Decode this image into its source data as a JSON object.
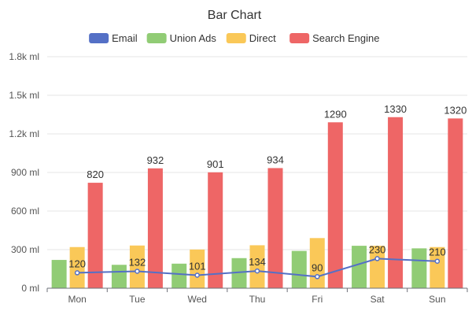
{
  "colors": {
    "email": "#5470c6",
    "union_ads": "#91cc75",
    "direct": "#fac858",
    "search_engine": "#ee6666",
    "grid": "#e6e6e6",
    "axis": "#6e7079"
  },
  "chart_data": {
    "type": "bar",
    "title": "Bar Chart",
    "xlabel": "",
    "ylabel": "",
    "categories": [
      "Mon",
      "Tue",
      "Wed",
      "Thu",
      "Fri",
      "Sat",
      "Sun"
    ],
    "ylim": [
      0,
      1800
    ],
    "yticks": [
      {
        "value": 0,
        "label": "0 ml"
      },
      {
        "value": 300,
        "label": "300 ml"
      },
      {
        "value": 600,
        "label": "600 ml"
      },
      {
        "value": 900,
        "label": "900 ml"
      },
      {
        "value": 1200,
        "label": "1.2k ml"
      },
      {
        "value": 1500,
        "label": "1.5k ml"
      },
      {
        "value": 1800,
        "label": "1.8k ml"
      }
    ],
    "grid": true,
    "legend_position": "top-center",
    "legend": [
      "Email",
      "Union Ads",
      "Direct",
      "Search Engine"
    ],
    "series": [
      {
        "name": "Email",
        "kind": "line",
        "color_key": "email",
        "values": [
          120,
          132,
          101,
          134,
          90,
          230,
          210
        ],
        "labels": [
          "120",
          "132",
          "101",
          "134",
          "90",
          "230",
          "210"
        ]
      },
      {
        "name": "Union Ads",
        "kind": "bar",
        "color_key": "union_ads",
        "values": [
          220,
          182,
          191,
          234,
          290,
          330,
          310
        ]
      },
      {
        "name": "Direct",
        "kind": "bar",
        "color_key": "direct",
        "values": [
          320,
          332,
          301,
          334,
          390,
          330,
          320
        ]
      },
      {
        "name": "Search Engine",
        "kind": "bar",
        "color_key": "search_engine",
        "values": [
          820,
          932,
          901,
          934,
          1290,
          1330,
          1320
        ],
        "labels": [
          "820",
          "932",
          "901",
          "934",
          "1290",
          "1330",
          "1320"
        ]
      }
    ]
  }
}
